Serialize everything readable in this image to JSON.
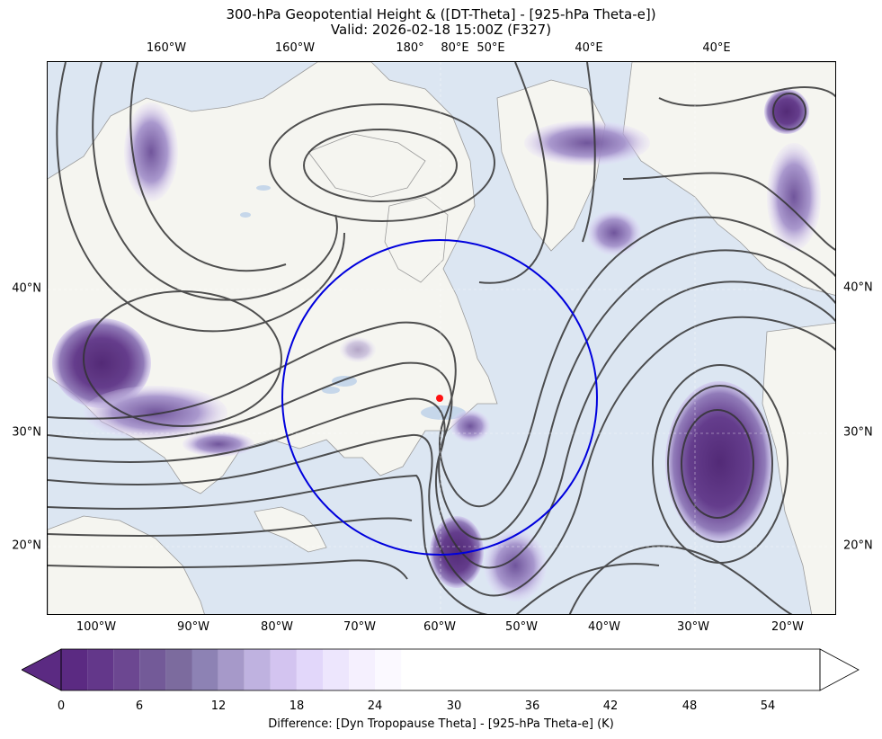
{
  "title_line1": "300-hPa Geopotential Height & ([DT-Theta] - [925-hPa Theta-e])",
  "title_line2": "Valid: 2026-02-18 15:00Z (F327)",
  "colorbar": {
    "label": "Difference: [Dyn Tropopause Theta] - [925-hPa Theta-e] (K)",
    "ticks": [
      "0",
      "6",
      "12",
      "18",
      "24",
      "30",
      "36",
      "42",
      "48",
      "54"
    ],
    "colors": [
      "#5b2a82",
      "#63378a",
      "#6c4791",
      "#735a98",
      "#7c6b9e",
      "#8d82b4",
      "#a699c9",
      "#bfb2e0",
      "#d3c4f0",
      "#e2d7fa",
      "#ede6fd",
      "#f5f0fe",
      "#fbf9ff",
      "#ffffff"
    ]
  },
  "top_lon_labels": [
    "160°W",
    "160°W",
    "180°",
    "80°E",
    "50°E",
    "40°E",
    "40°E"
  ],
  "bottom_lon_labels": [
    "100°W",
    "90°W",
    "80°W",
    "70°W",
    "60°W",
    "50°W",
    "40°W",
    "30°W",
    "20°W"
  ],
  "left_lat_labels": [
    "40°N",
    "30°N",
    "20°N"
  ],
  "right_lat_labels": [
    "40°N",
    "30°N",
    "20°N"
  ],
  "map": {
    "ocean_color": "#dce6f2",
    "land_color": "#f5f5f0",
    "ring_color": "#0000dd",
    "point_color": "#ff1111",
    "contour_color": "#333333"
  }
}
